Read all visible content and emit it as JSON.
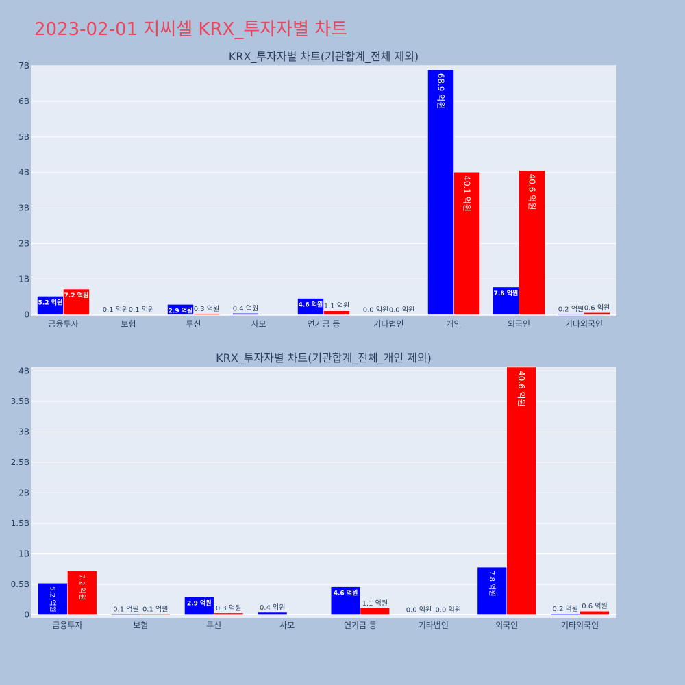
{
  "page": {
    "title": "2023-02-01 지씨셀 KRX_투자자별 차트"
  },
  "colors": {
    "paper": "#b0c4de",
    "plot": "#e5ecf6",
    "grid": "#ffffff",
    "text": "#2a3f5f",
    "series_a": "#0000ff",
    "series_b": "#ff0000"
  },
  "chart_data": [
    {
      "type": "bar",
      "title": "KRX_투자자별 차트(기관합계_전체 제외)",
      "categories": [
        "금융투자",
        "보험",
        "투신",
        "사모",
        "연기금 등",
        "기타법인",
        "개인",
        "외국인",
        "기타외국인"
      ],
      "series": [
        {
          "values": [
            520000000,
            10000000,
            290000000,
            40000000,
            460000000,
            0,
            6890000000,
            780000000,
            20000000
          ],
          "labels": [
            "5.2 억원",
            "0.1 억원",
            "2.9 억원",
            "0.4 억원",
            "4.6 억원",
            "0.0 억원",
            "68.9 억원",
            "7.8 억원",
            "0.2 억원"
          ]
        },
        {
          "values": [
            720000000,
            10000000,
            30000000,
            0,
            110000000,
            0,
            4010000000,
            4060000000,
            60000000
          ],
          "labels": [
            "7.2 억원",
            "0.1 억원",
            "0.3 억원",
            "",
            "1.1 억원",
            "0.0 억원",
            "40.1 억원",
            "40.6 억원",
            "0.6 억원"
          ]
        }
      ],
      "yticks": [
        0,
        1000000000,
        2000000000,
        3000000000,
        4000000000,
        5000000000,
        6000000000,
        7000000000
      ],
      "ytick_labels": [
        "0",
        "1B",
        "2B",
        "3B",
        "4B",
        "5B",
        "6B",
        "7B"
      ],
      "ylim": [
        -50000000,
        7000000000
      ],
      "grid": true
    },
    {
      "type": "bar",
      "title": "KRX_투자자별 차트(기관합계_전체_개인 제외)",
      "categories": [
        "금융투자",
        "보험",
        "투신",
        "사모",
        "연기금 등",
        "기타법인",
        "외국인",
        "기타외국인"
      ],
      "series": [
        {
          "values": [
            520000000,
            10000000,
            290000000,
            40000000,
            460000000,
            0,
            780000000,
            20000000
          ],
          "labels": [
            "5.2 억원",
            "0.1 억원",
            "2.9 억원",
            "0.4 억원",
            "4.6 억원",
            "0.0 억원",
            "7.8 억원",
            "0.2 억원"
          ]
        },
        {
          "values": [
            720000000,
            10000000,
            30000000,
            0,
            110000000,
            0,
            4060000000,
            60000000
          ],
          "labels": [
            "7.2 억원",
            "0.1 억원",
            "0.3 억원",
            "",
            "1.1 억원",
            "0.0 억원",
            "40.6 억원",
            "0.6 억원"
          ]
        }
      ],
      "yticks": [
        0,
        500000000,
        1000000000,
        1500000000,
        2000000000,
        2500000000,
        3000000000,
        3500000000,
        4000000000
      ],
      "ytick_labels": [
        "0",
        "0.5B",
        "1B",
        "1.5B",
        "2B",
        "2.5B",
        "3B",
        "3.5B",
        "4B"
      ],
      "ylim": [
        -50000000,
        4060000000
      ],
      "grid": true
    }
  ]
}
